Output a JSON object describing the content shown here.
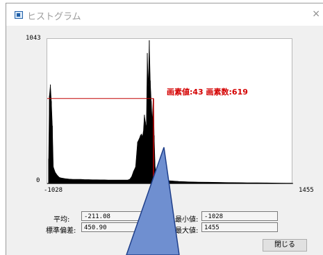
{
  "window": {
    "title": "ヒストグラム",
    "close_glyph": "×"
  },
  "chart_data": {
    "type": "area",
    "ylim": [
      0,
      1043
    ],
    "xlim": [
      -1028,
      1455
    ],
    "y_tick_labels": [
      "1043",
      "0"
    ],
    "x_tick_labels": [
      "-1028",
      "1455"
    ],
    "x": [
      -1028,
      -1020,
      -1010,
      -1000,
      -990,
      -980,
      -960,
      -940,
      -920,
      -900,
      -860,
      -820,
      -780,
      -740,
      -700,
      -660,
      -620,
      -580,
      -540,
      -500,
      -460,
      -420,
      -380,
      -340,
      -300,
      -260,
      -220,
      -200,
      -180,
      -160,
      -140,
      -120,
      -100,
      -90,
      -80,
      -70,
      -60,
      -50,
      -40,
      -30,
      -20,
      -10,
      0,
      10,
      20,
      30,
      40,
      43,
      50,
      60,
      70,
      80,
      100,
      150,
      200,
      300,
      400,
      500,
      600,
      700,
      800,
      900,
      1000,
      1100,
      1200,
      1300,
      1400,
      1455
    ],
    "values": [
      180,
      640,
      720,
      600,
      420,
      120,
      80,
      60,
      45,
      40,
      35,
      32,
      30,
      30,
      30,
      28,
      28,
      27,
      27,
      26,
      26,
      25,
      25,
      25,
      25,
      25,
      25,
      30,
      50,
      90,
      120,
      300,
      330,
      350,
      360,
      340,
      380,
      500,
      450,
      400,
      950,
      700,
      1043,
      750,
      600,
      450,
      619,
      619,
      350,
      120,
      70,
      50,
      40,
      30,
      20,
      15,
      12,
      10,
      9,
      8,
      7,
      6,
      5,
      5,
      4,
      3,
      2,
      2
    ],
    "cursor": {
      "x": 43,
      "y": 619
    },
    "annotation": "画素値:43 画素数:619"
  },
  "stats": {
    "mean_label": "平均:",
    "mean_value": "-211.08",
    "std_label": "標準偏差:",
    "std_value": "450.90",
    "min_label": "最小値:",
    "min_value": "-1028",
    "max_label": "最大値:",
    "max_value": "1455"
  },
  "buttons": {
    "close_label": "閉じる"
  },
  "colors": {
    "histogram": "#000000",
    "cursor_line": "#c00000",
    "annotation": "#d40000",
    "overlay_arrow": "#6f8fd0"
  }
}
